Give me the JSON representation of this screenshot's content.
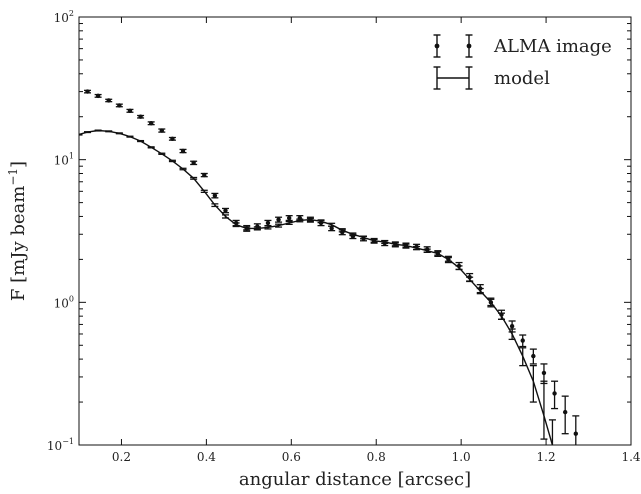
{
  "chart_data": {
    "type": "scatter",
    "xlabel": "angular distance [arcsec]",
    "ylabel": "F [mJy beam",
    "ylabel_exponent": "−1",
    "ylabel_close": "]",
    "xlim": [
      0.1,
      1.4
    ],
    "ylim": [
      0.1,
      100
    ],
    "yscale": "log",
    "grid": false,
    "legend_placement": "top-right",
    "x_ticks": [
      0.2,
      0.4,
      0.6,
      0.8,
      1.0,
      1.2,
      1.4
    ],
    "x_tick_labels": [
      "0.2",
      "0.4",
      "0.6",
      "0.8",
      "1.0",
      "1.2",
      "1.4"
    ],
    "y_ticks": [
      {
        "value": 0.1,
        "base": "10",
        "exp": "−1"
      },
      {
        "value": 1,
        "base": "10",
        "exp": "0"
      },
      {
        "value": 10,
        "base": "10",
        "exp": "1"
      },
      {
        "value": 100,
        "base": "10",
        "exp": "2"
      }
    ],
    "series": [
      {
        "name": "ALMA image",
        "style": "points-errorbars",
        "x": [
          0.12,
          0.145,
          0.17,
          0.195,
          0.22,
          0.245,
          0.27,
          0.295,
          0.32,
          0.345,
          0.37,
          0.395,
          0.42,
          0.445,
          0.47,
          0.495,
          0.52,
          0.545,
          0.57,
          0.595,
          0.62,
          0.645,
          0.67,
          0.695,
          0.72,
          0.745,
          0.77,
          0.795,
          0.82,
          0.845,
          0.87,
          0.895,
          0.92,
          0.945,
          0.97,
          0.995,
          1.02,
          1.045,
          1.07,
          1.095,
          1.12,
          1.145,
          1.17,
          1.195,
          1.22,
          1.245,
          1.27
        ],
        "y": [
          30,
          28,
          26,
          24,
          22,
          20,
          18,
          16,
          14,
          11.5,
          9.5,
          7.8,
          5.6,
          4.4,
          3.6,
          3.3,
          3.4,
          3.6,
          3.8,
          3.9,
          3.9,
          3.8,
          3.6,
          3.3,
          3.1,
          2.9,
          2.8,
          2.7,
          2.6,
          2.55,
          2.5,
          2.45,
          2.35,
          2.2,
          2.0,
          1.8,
          1.5,
          1.25,
          1.0,
          0.82,
          0.68,
          0.54,
          0.42,
          0.32,
          0.23,
          0.17,
          0.12
        ],
        "err_lo": [
          0.6,
          0.6,
          0.5,
          0.5,
          0.5,
          0.4,
          0.4,
          0.4,
          0.3,
          0.3,
          0.25,
          0.2,
          0.2,
          0.15,
          0.15,
          0.15,
          0.15,
          0.15,
          0.15,
          0.15,
          0.15,
          0.15,
          0.15,
          0.12,
          0.12,
          0.1,
          0.1,
          0.1,
          0.1,
          0.1,
          0.1,
          0.1,
          0.1,
          0.1,
          0.1,
          0.1,
          0.09,
          0.08,
          0.07,
          0.06,
          0.06,
          0.05,
          0.05,
          0.05,
          0.05,
          0.05,
          0.04
        ],
        "err_hi": [
          0.6,
          0.6,
          0.5,
          0.5,
          0.5,
          0.4,
          0.4,
          0.4,
          0.3,
          0.3,
          0.25,
          0.2,
          0.2,
          0.15,
          0.15,
          0.15,
          0.15,
          0.15,
          0.15,
          0.15,
          0.15,
          0.15,
          0.15,
          0.12,
          0.12,
          0.1,
          0.1,
          0.1,
          0.1,
          0.1,
          0.1,
          0.1,
          0.1,
          0.1,
          0.1,
          0.1,
          0.09,
          0.08,
          0.07,
          0.06,
          0.06,
          0.05,
          0.05,
          0.05,
          0.05,
          0.05,
          0.04
        ]
      },
      {
        "name": "model",
        "style": "line-errorbars",
        "x": [
          0.1,
          0.12,
          0.145,
          0.17,
          0.195,
          0.22,
          0.245,
          0.27,
          0.295,
          0.32,
          0.345,
          0.37,
          0.395,
          0.42,
          0.445,
          0.47,
          0.495,
          0.52,
          0.545,
          0.57,
          0.595,
          0.62,
          0.645,
          0.67,
          0.695,
          0.72,
          0.745,
          0.77,
          0.795,
          0.82,
          0.845,
          0.87,
          0.895,
          0.92,
          0.945,
          0.97,
          0.995,
          1.02,
          1.045,
          1.07,
          1.095,
          1.12,
          1.145,
          1.17,
          1.195,
          1.215
        ],
        "y": [
          15,
          15.6,
          16,
          15.8,
          15.3,
          14.5,
          13.5,
          12.2,
          11,
          9.8,
          8.6,
          7.4,
          6,
          4.8,
          4,
          3.5,
          3.3,
          3.3,
          3.35,
          3.45,
          3.6,
          3.75,
          3.8,
          3.7,
          3.5,
          3.2,
          3.0,
          2.85,
          2.7,
          2.65,
          2.55,
          2.5,
          2.4,
          2.3,
          2.2,
          2.0,
          1.75,
          1.45,
          1.2,
          1.0,
          0.8,
          0.6,
          0.42,
          0.28,
          0.16,
          0.1
        ],
        "err_lo": [
          0.1,
          0.1,
          0.1,
          0.1,
          0.1,
          0.1,
          0.1,
          0.1,
          0.1,
          0.1,
          0.1,
          0.1,
          0.1,
          0.1,
          0.1,
          0.1,
          0.08,
          0.08,
          0.08,
          0.08,
          0.08,
          0.08,
          0.08,
          0.08,
          0.08,
          0.08,
          0.06,
          0.06,
          0.06,
          0.06,
          0.06,
          0.06,
          0.06,
          0.06,
          0.06,
          0.06,
          0.05,
          0.05,
          0.05,
          0.05,
          0.04,
          0.05,
          0.06,
          0.08,
          0.05,
          0.03
        ],
        "err_hi": [
          0.1,
          0.1,
          0.1,
          0.1,
          0.1,
          0.1,
          0.1,
          0.1,
          0.1,
          0.1,
          0.1,
          0.1,
          0.1,
          0.1,
          0.1,
          0.1,
          0.08,
          0.08,
          0.08,
          0.08,
          0.08,
          0.08,
          0.08,
          0.08,
          0.08,
          0.08,
          0.06,
          0.06,
          0.06,
          0.06,
          0.06,
          0.06,
          0.06,
          0.06,
          0.06,
          0.06,
          0.05,
          0.05,
          0.05,
          0.05,
          0.04,
          0.05,
          0.06,
          0.08,
          0.12,
          0.05
        ]
      }
    ]
  }
}
